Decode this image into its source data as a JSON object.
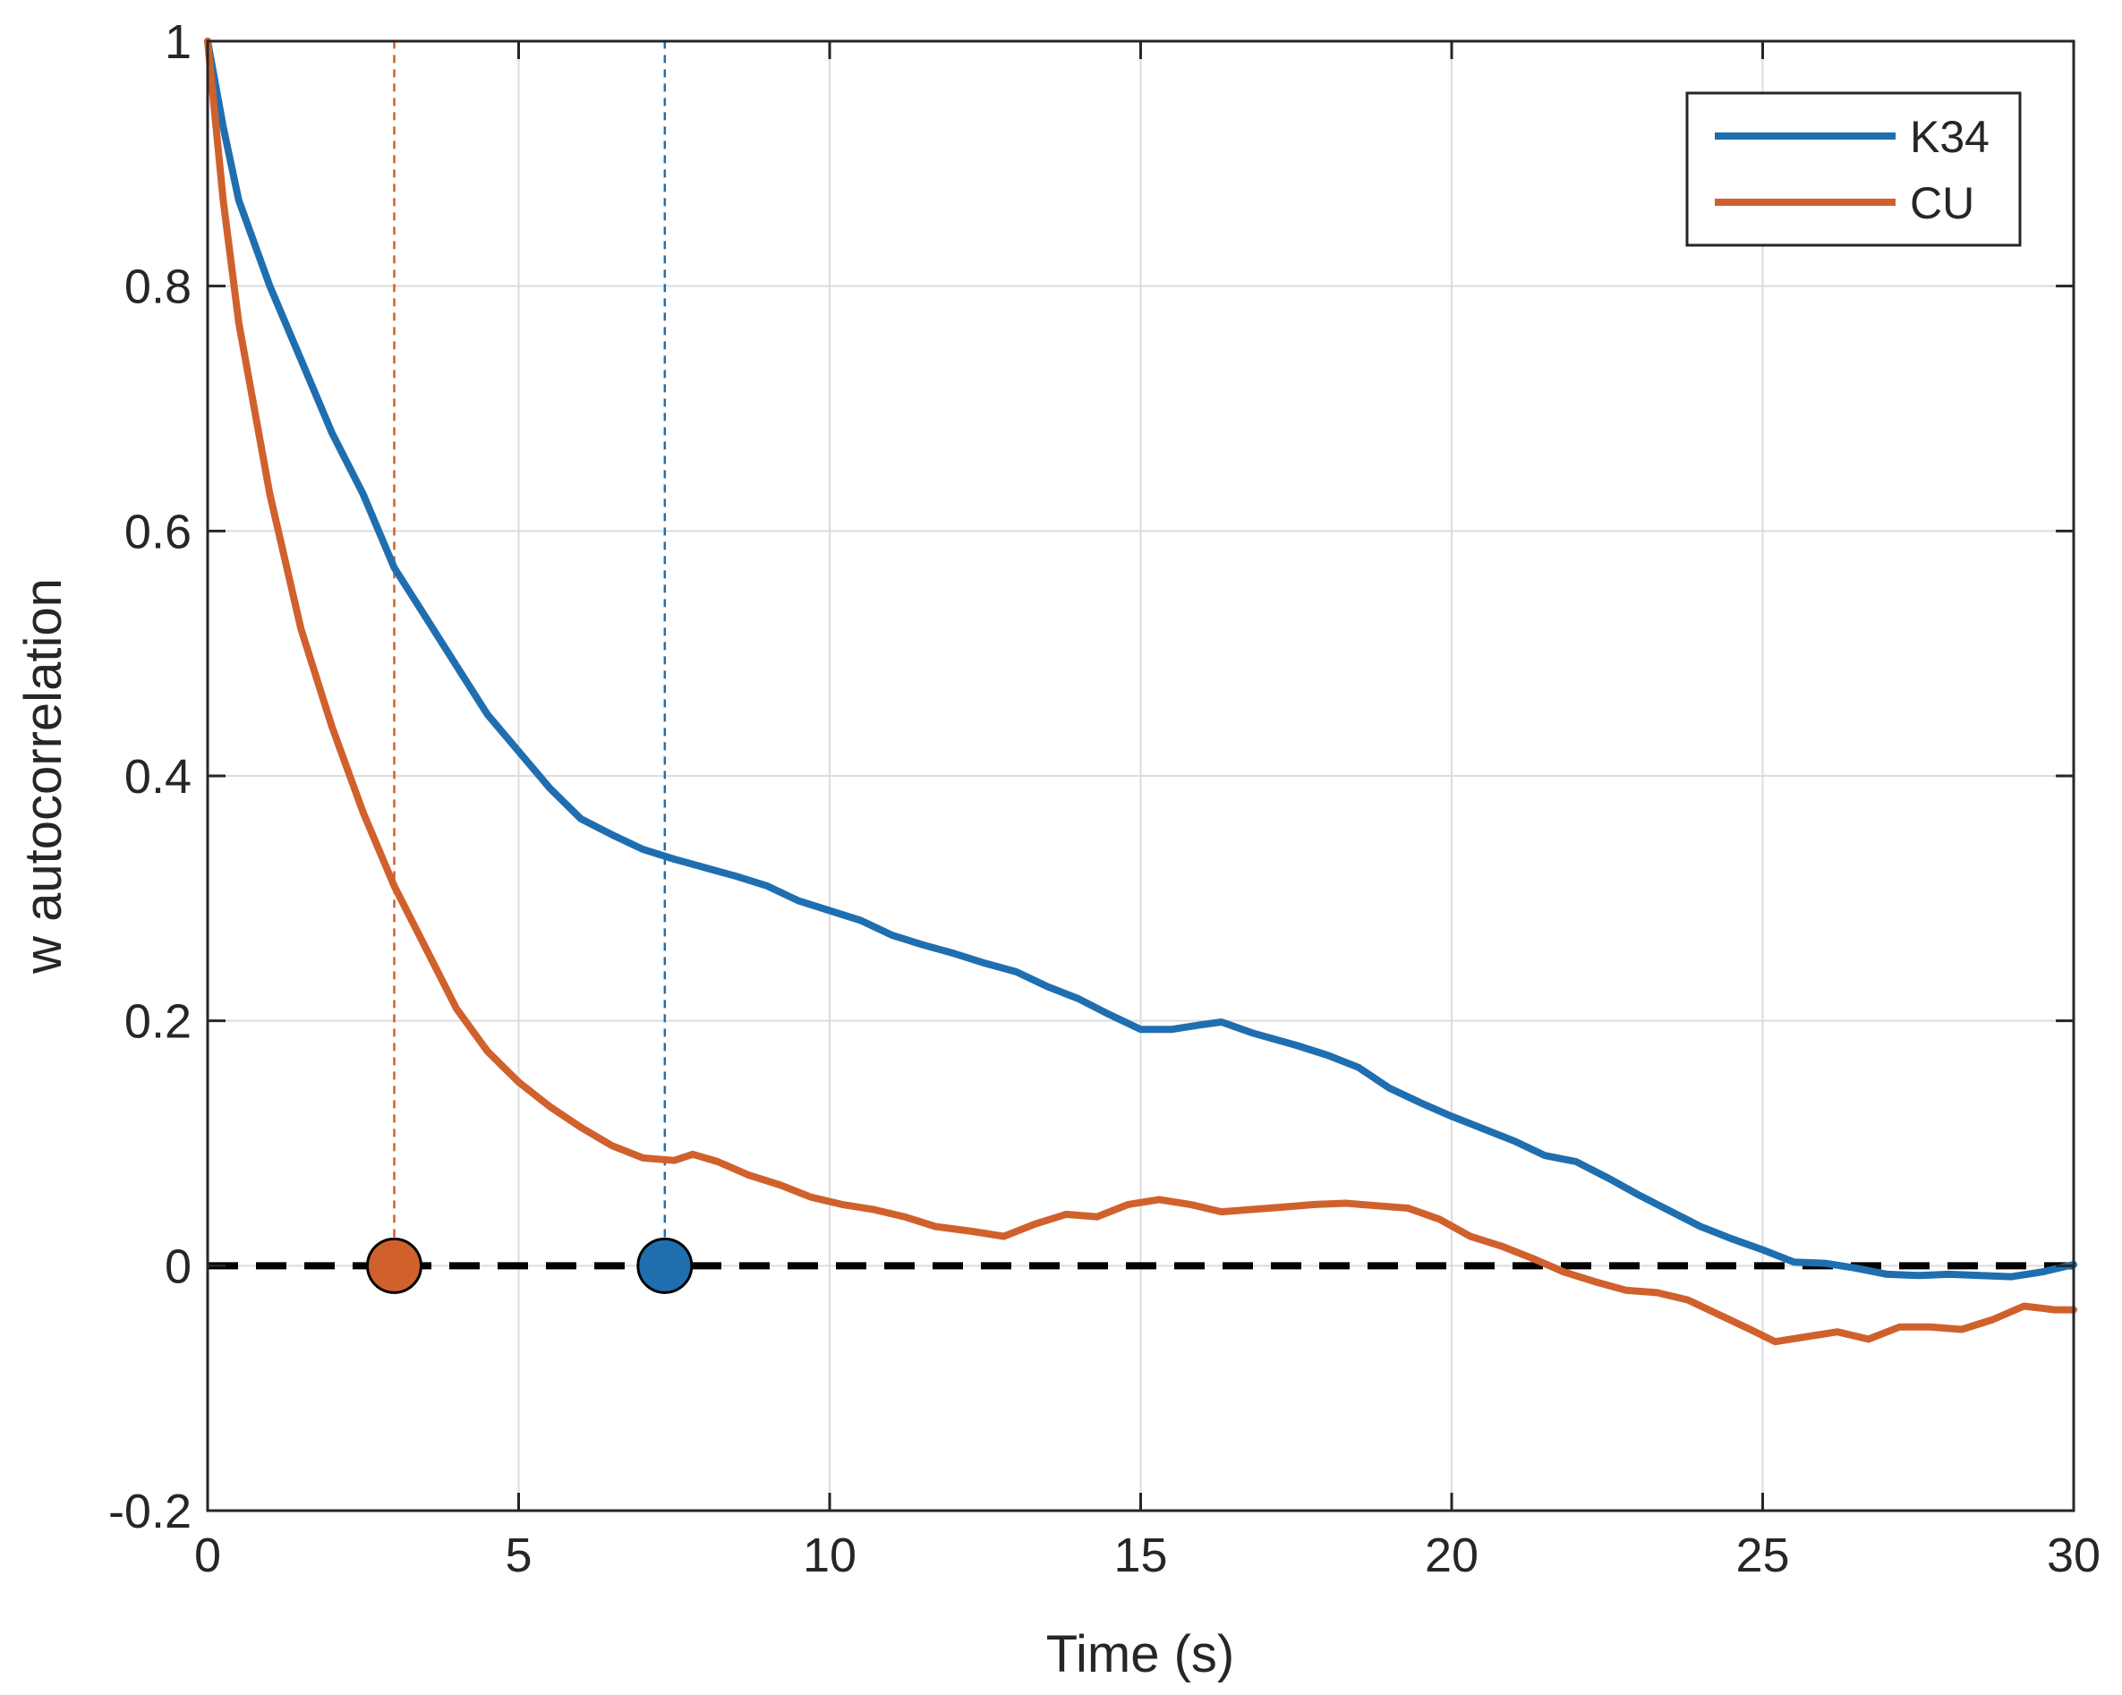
{
  "chart_data": {
    "type": "line",
    "title": "",
    "xlabel": "Time (s)",
    "ylabel": "w autocorrelation",
    "xlim": [
      0,
      30
    ],
    "ylim": [
      -0.2,
      1
    ],
    "xticks": [
      0,
      5,
      10,
      15,
      20,
      25,
      30
    ],
    "yticks": [
      -0.2,
      0,
      0.2,
      0.4,
      0.6,
      0.8,
      1
    ],
    "xtick_labels": [
      "0",
      "5",
      "10",
      "15",
      "20",
      "25",
      "30"
    ],
    "ytick_labels": [
      "-0.2",
      "0",
      "0.2",
      "0.4",
      "0.6",
      "0.8",
      "1"
    ],
    "grid": true,
    "legend_position": "top-right",
    "series": [
      {
        "name": "K34",
        "color": "#1f6fb0",
        "x": [
          0,
          0.25,
          0.5,
          1,
          1.5,
          2,
          2.5,
          3,
          3.5,
          4,
          4.5,
          5,
          5.5,
          6,
          6.5,
          7,
          7.5,
          8,
          8.5,
          9,
          9.5,
          10,
          10.5,
          11,
          11.5,
          12,
          12.5,
          13,
          13.5,
          14,
          14.5,
          15,
          15.5,
          16,
          16.3,
          16.8,
          17.5,
          18,
          18.5,
          19,
          19.5,
          20,
          20.5,
          21,
          21.5,
          22,
          22.5,
          23,
          23.5,
          24,
          24.5,
          25,
          25.5,
          26,
          26.5,
          27,
          27.5,
          28,
          28.5,
          29,
          29.5,
          30
        ],
        "y": [
          1,
          0.93,
          0.87,
          0.8,
          0.74,
          0.68,
          0.63,
          0.57,
          0.53,
          0.49,
          0.45,
          0.42,
          0.39,
          0.365,
          0.352,
          0.34,
          0.332,
          0.325,
          0.318,
          0.31,
          0.298,
          0.29,
          0.282,
          0.27,
          0.262,
          0.255,
          0.247,
          0.24,
          0.228,
          0.218,
          0.205,
          0.193,
          0.193,
          0.197,
          0.199,
          0.19,
          0.18,
          0.172,
          0.162,
          0.145,
          0.133,
          0.122,
          0.112,
          0.102,
          0.09,
          0.085,
          0.072,
          0.058,
          0.045,
          0.032,
          0.022,
          0.013,
          0.003,
          0.002,
          -0.002,
          -0.007,
          -0.008,
          -0.007,
          -0.008,
          -0.009,
          -0.005,
          0.001
        ]
      },
      {
        "name": "CU",
        "color": "#d0612c",
        "x": [
          0,
          0.25,
          0.5,
          1,
          1.5,
          2,
          2.5,
          3,
          3.5,
          4,
          4.5,
          5,
          5.5,
          6,
          6.5,
          7,
          7.5,
          7.8,
          8.2,
          8.7,
          9.2,
          9.7,
          10.2,
          10.7,
          11.2,
          11.7,
          12.3,
          12.8,
          13.3,
          13.8,
          14.3,
          14.8,
          15.3,
          15.8,
          16.3,
          16.8,
          17.3,
          17.8,
          18.3,
          18.8,
          19.3,
          19.8,
          20.3,
          20.8,
          21.3,
          21.8,
          22.3,
          22.8,
          23.3,
          23.8,
          24.3,
          24.8,
          25.2,
          25.7,
          26.2,
          26.7,
          27.2,
          27.7,
          28.2,
          28.7,
          29.2,
          29.7,
          30
        ],
        "y": [
          1,
          0.87,
          0.77,
          0.63,
          0.52,
          0.44,
          0.37,
          0.31,
          0.26,
          0.21,
          0.175,
          0.15,
          0.13,
          0.113,
          0.098,
          0.088,
          0.086,
          0.091,
          0.085,
          0.074,
          0.066,
          0.056,
          0.05,
          0.046,
          0.04,
          0.032,
          0.028,
          0.024,
          0.034,
          0.042,
          0.04,
          0.05,
          0.054,
          0.05,
          0.044,
          0.046,
          0.048,
          0.05,
          0.051,
          0.049,
          0.047,
          0.038,
          0.024,
          0.016,
          0.006,
          -0.005,
          -0.013,
          -0.02,
          -0.022,
          -0.028,
          -0.04,
          -0.052,
          -0.062,
          -0.058,
          -0.054,
          -0.06,
          -0.05,
          -0.05,
          -0.052,
          -0.044,
          -0.033,
          -0.036,
          -0.036
        ]
      }
    ],
    "reference_line": {
      "y": 0,
      "color": "#000000",
      "style": "dashed"
    },
    "markers": [
      {
        "series": "CU",
        "x": 3,
        "y": 0,
        "color": "#d0612c"
      },
      {
        "series": "K34",
        "x": 7.35,
        "y": 0,
        "color": "#1f6fb0"
      }
    ]
  }
}
